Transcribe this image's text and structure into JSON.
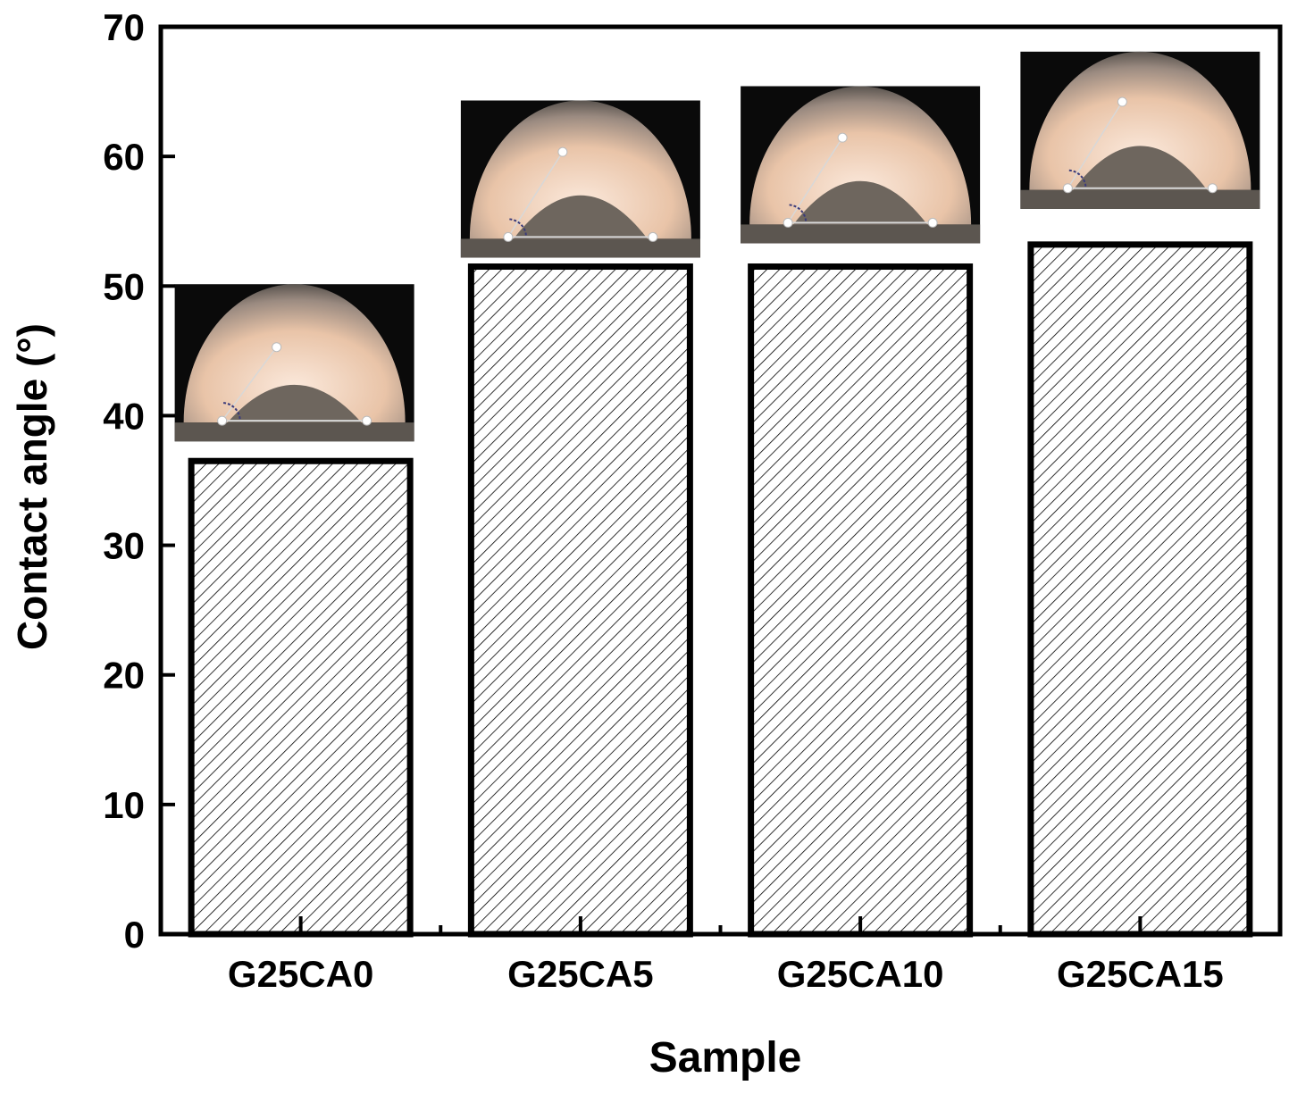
{
  "chart_data": {
    "type": "bar",
    "title": "",
    "xlabel": "Sample",
    "ylabel": "Contact angle (°)",
    "categories": [
      "G25CA0",
      "G25CA5",
      "G25CA10",
      "G25CA15"
    ],
    "values": [
      36.5,
      51.5,
      51.5,
      53.2
    ],
    "ylim": [
      0,
      70
    ],
    "yticks": [
      0,
      10,
      20,
      30,
      40,
      50,
      60,
      70
    ],
    "bar_fill": "hatched",
    "grid": false,
    "insets": [
      {
        "category": "G25CA0",
        "description": "contact-angle-droplet-photo"
      },
      {
        "category": "G25CA5",
        "description": "contact-angle-droplet-photo"
      },
      {
        "category": "G25CA10",
        "description": "contact-angle-droplet-photo"
      },
      {
        "category": "G25CA15",
        "description": "contact-angle-droplet-photo"
      }
    ]
  },
  "colors": {
    "axis": "#000000",
    "bar_stroke": "#000000",
    "hatch": "#000000",
    "background": "#ffffff",
    "photo_dark": "#0a0a0a",
    "photo_glow": "#f3d6c0",
    "photo_drop": "#6e665e"
  }
}
